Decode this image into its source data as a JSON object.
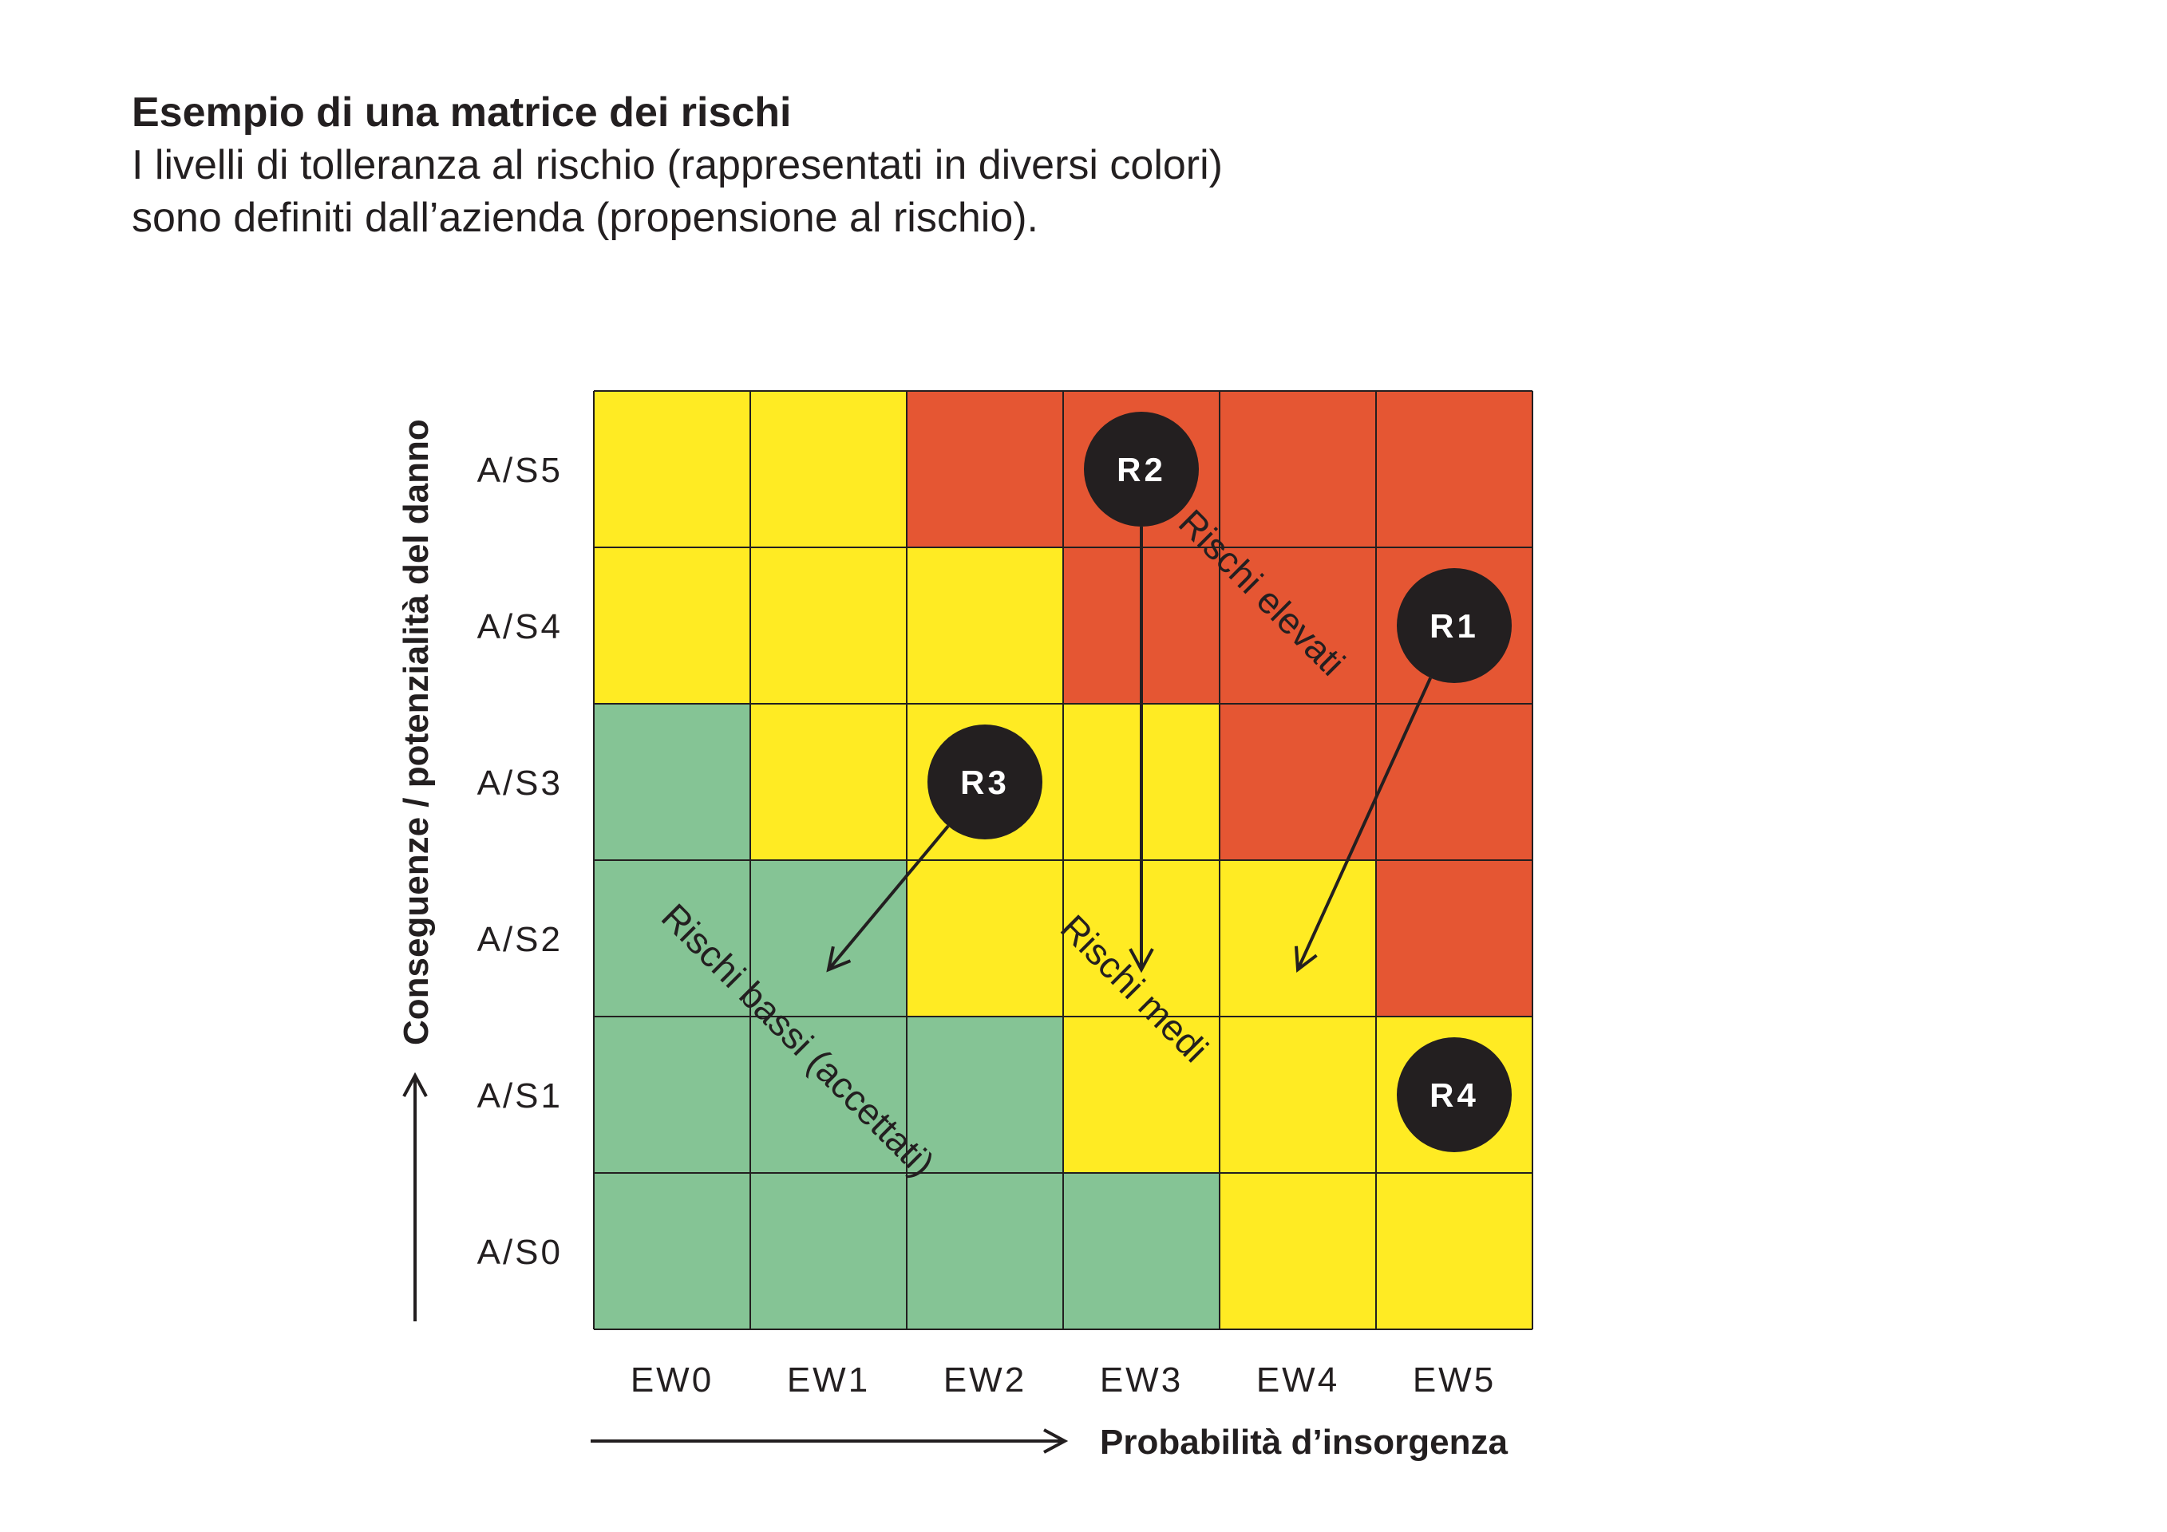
{
  "header": {
    "title": "Esempio di una matrice dei rischi",
    "subtitle_lines": [
      "I livelli di tolleranza al rischio (rappresentati in diversi colori)",
      "sono definiti dall’azienda (propensione al rischio)."
    ]
  },
  "matrix": {
    "x_labels": [
      "EW0",
      "EW1",
      "EW2",
      "EW3",
      "EW4",
      "EW5"
    ],
    "y_labels": [
      "A/S0",
      "A/S1",
      "A/S2",
      "A/S3",
      "A/S4",
      "A/S5"
    ],
    "x_axis_title": "Probabilità d’insorgenza",
    "y_axis_title": "Conseguenze / potenzialità del danno",
    "colors": {
      "G": "#85c495",
      "Y": "#ffeb23",
      "R": "#e55633"
    },
    "cells_top_to_bottom": [
      [
        "Y",
        "Y",
        "R",
        "R",
        "R",
        "R"
      ],
      [
        "Y",
        "Y",
        "Y",
        "R",
        "R",
        "R"
      ],
      [
        "G",
        "Y",
        "Y",
        "Y",
        "R",
        "R"
      ],
      [
        "G",
        "G",
        "Y",
        "Y",
        "Y",
        "R"
      ],
      [
        "G",
        "G",
        "G",
        "Y",
        "Y",
        "Y"
      ],
      [
        "G",
        "G",
        "G",
        "G",
        "Y",
        "Y"
      ]
    ],
    "zone_labels": {
      "high": "Rischi elevati",
      "medium": "Rischi medi",
      "low": "Rischi bassi (accettati)"
    },
    "risks": [
      {
        "label": "R1",
        "x": 5.5,
        "y": 4.5,
        "target_x": 4.5,
        "target_y": 2.3
      },
      {
        "label": "R2",
        "x": 3.5,
        "y": 5.5,
        "target_x": 3.5,
        "target_y": 2.3
      },
      {
        "label": "R3",
        "x": 2.5,
        "y": 3.5,
        "target_x": 1.5,
        "target_y": 2.3
      },
      {
        "label": "R4",
        "x": 5.5,
        "y": 1.5
      }
    ]
  }
}
